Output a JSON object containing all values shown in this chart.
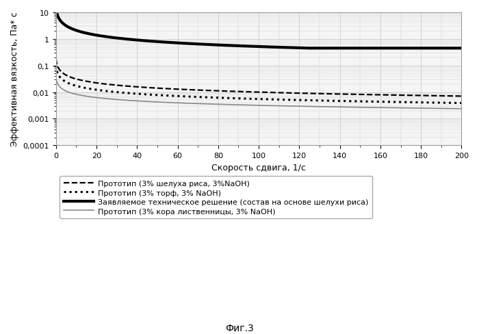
{
  "title": "",
  "xlabel": "Скорость сдвига, 1/с",
  "ylabel": "Эффективная вязкость, Па* с",
  "fig_caption": "Фиг.3",
  "xlim": [
    0,
    200
  ],
  "ylim": [
    0.0001,
    10
  ],
  "xticks": [
    0,
    20,
    40,
    60,
    80,
    100,
    120,
    140,
    160,
    180,
    200
  ],
  "ytick_labels": [
    "0,0001",
    "0,001",
    "0,01",
    "0,1",
    "1",
    "10"
  ],
  "background_color": "#f5f5f5",
  "grid_color": "#cccccc",
  "curves": [
    {
      "name": "Прототип (3% шелуха риса, 3%NaOH)",
      "style": "--",
      "color": "#000000",
      "linewidth": 1.6,
      "a": 0.1,
      "b": -0.5,
      "x0": 0.3,
      "plateau": 0.0045
    },
    {
      "name": "Прототип (3% торф, 3% NaOH)",
      "style": ":",
      "color": "#000000",
      "linewidth": 2.2,
      "a": 0.06,
      "b": -0.55,
      "x0": 0.3,
      "plateau": 0.0028
    },
    {
      "name": "Заявляемое техническое решение (состав на основе шелухи риса)",
      "style": "-",
      "color": "#000000",
      "linewidth": 3.0,
      "a": 9.0,
      "b": -0.62,
      "x0": 0.5,
      "plateau": 0.45
    },
    {
      "name": "Прототип (3% кора лиственницы, 3% NaOH)",
      "style": "-",
      "color": "#888888",
      "linewidth": 1.2,
      "a": 0.025,
      "b": -0.4,
      "x0": 0.3,
      "plateau": 0.0014
    }
  ]
}
